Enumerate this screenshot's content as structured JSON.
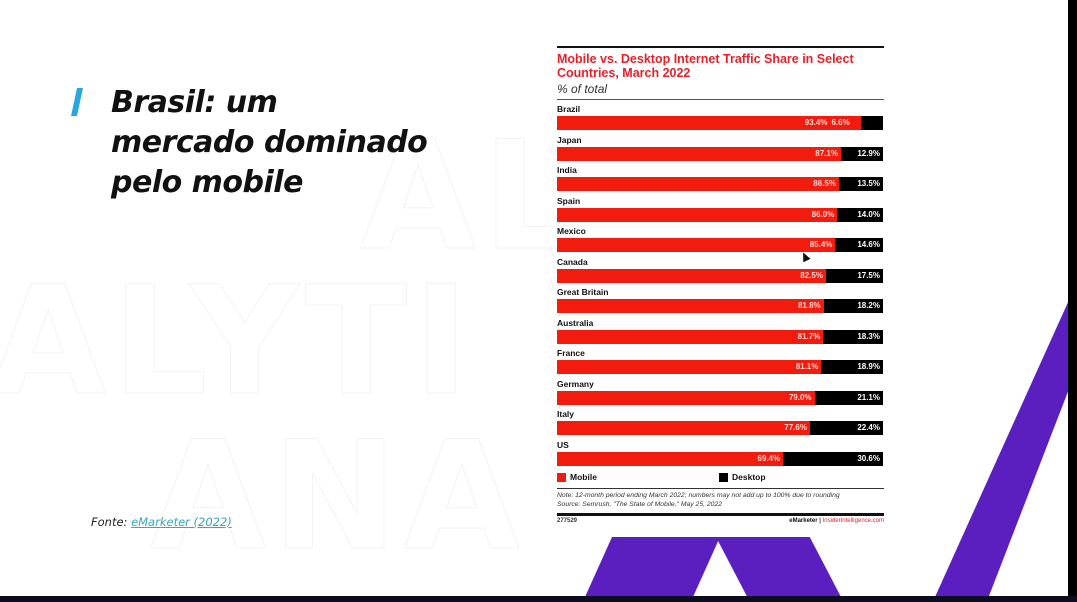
{
  "slide": {
    "title": "Brasil: um mercado dominado pelo mobile",
    "title_lines": [
      "Brasil: um",
      "mercado dominado",
      "pelo mobile"
    ],
    "source_prefix": "Fonte:",
    "source_link": "eMarketer (2022)",
    "watermark_lines": [
      "AL",
      "ALYTI",
      "ANA"
    ],
    "colors": {
      "accent_bar": "#29a8e0",
      "purple": "#5b1fc0",
      "link": "#3aa6b9"
    }
  },
  "chart": {
    "title": "Mobile vs. Desktop Internet Traffic Share in Select Countries, March 2022",
    "subtitle": "% of total",
    "legend": {
      "mobile": "Mobile",
      "desktop": "Desktop"
    },
    "note": "Note: 12-month period ending March 2022; numbers may not add up to 100% due to rounding",
    "source": "Source: Semrush, \"The State of Mobile,\" May 25, 2022",
    "chart_id": "277529",
    "brand": "eMarketer",
    "separator": "|",
    "site": "InsiderIntelligence.com",
    "colors": {
      "mobile": "#f21b0d",
      "desktop": "#000000",
      "title": "#e8202a"
    }
  },
  "chart_data": {
    "type": "bar",
    "orientation": "horizontal",
    "stacked": true,
    "title": "Mobile vs. Desktop Internet Traffic Share in Select Countries, March 2022",
    "subtitle": "% of total",
    "xlabel": "",
    "ylabel": "",
    "xlim": [
      0,
      100
    ],
    "legend_position": "bottom",
    "categories": [
      "Brazil",
      "Japan",
      "India",
      "Spain",
      "Mexico",
      "Canada",
      "Great Britain",
      "Australia",
      "France",
      "Germany",
      "Italy",
      "US"
    ],
    "series": [
      {
        "name": "Mobile",
        "color": "#f21b0d",
        "values": [
          93.4,
          87.1,
          86.5,
          86.0,
          85.4,
          82.5,
          81.8,
          81.7,
          81.1,
          79.0,
          77.6,
          69.4
        ]
      },
      {
        "name": "Desktop",
        "color": "#000000",
        "values": [
          6.6,
          12.9,
          13.5,
          14.0,
          14.6,
          17.5,
          18.2,
          18.3,
          18.9,
          21.1,
          22.4,
          30.6
        ]
      }
    ],
    "labels_mobile": [
      "93.4%",
      "87.1%",
      "86.5%",
      "86.0%",
      "85.4%",
      "82.5%",
      "81.8%",
      "81.7%",
      "81.1%",
      "79.0%",
      "77.6%",
      "69.4%"
    ],
    "labels_desktop": [
      "6.6%",
      "12.9%",
      "13.5%",
      "14.0%",
      "14.6%",
      "17.5%",
      "18.2%",
      "18.3%",
      "18.9%",
      "21.1%",
      "22.4%",
      "30.6%"
    ]
  }
}
